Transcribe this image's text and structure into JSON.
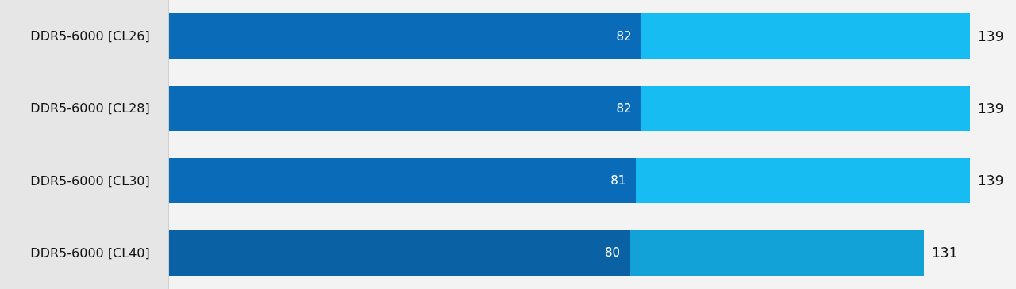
{
  "chart_data": {
    "type": "bar",
    "orientation": "horizontal",
    "stacked": true,
    "categories": [
      "DDR5-6000 [CL26]",
      "DDR5-6000 [CL28]",
      "DDR5-6000 [CL30]",
      "DDR5-6000 [CL40]"
    ],
    "series": [
      {
        "colors": [
          "#0a6cb8",
          "#0a6cb8",
          "#0a6cb8",
          "#0a62a4"
        ],
        "values": [
          82,
          82,
          81,
          80
        ],
        "value_labels": [
          "82",
          "82",
          "81",
          "80"
        ]
      },
      {
        "colors": [
          "#16bcf2",
          "#16bcf2",
          "#16bcf2",
          "#12a2d8"
        ],
        "values": [
          57,
          57,
          58,
          51
        ]
      }
    ],
    "totals": [
      "139",
      "139",
      "139",
      "131"
    ],
    "xlim": [
      0,
      147
    ],
    "tick_labels": "y",
    "grid": false,
    "legend": false
  }
}
